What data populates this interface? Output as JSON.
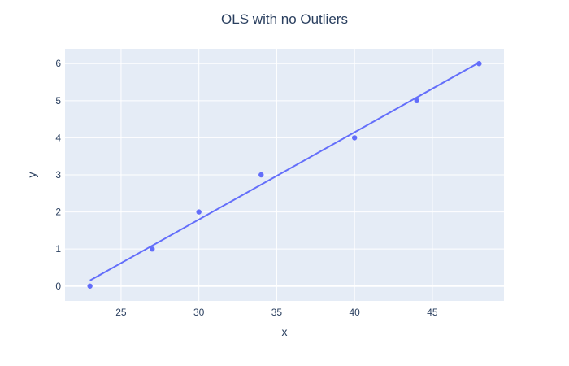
{
  "chart_data": {
    "type": "scatter",
    "title": "OLS with no Outliers",
    "xlabel": "x",
    "ylabel": "y",
    "xlim": [
      21.4,
      49.6
    ],
    "ylim": [
      -0.4,
      6.4
    ],
    "x_ticks": [
      25,
      30,
      35,
      40,
      45
    ],
    "y_ticks": [
      0,
      1,
      2,
      3,
      4,
      5,
      6
    ],
    "grid": true,
    "legend": "none",
    "colors": {
      "plot_bg": "#e5ecf6",
      "grid": "#ffffff",
      "series": "#636efa",
      "text": "#2a3f5f"
    },
    "series": [
      {
        "mode": "markers",
        "x": [
          23,
          27,
          30,
          34,
          40,
          44,
          48
        ],
        "y": [
          0,
          1,
          2,
          3,
          4,
          5,
          6
        ]
      },
      {
        "mode": "lines",
        "x": [
          23,
          48
        ],
        "y": [
          0.15,
          6.03
        ]
      }
    ]
  }
}
